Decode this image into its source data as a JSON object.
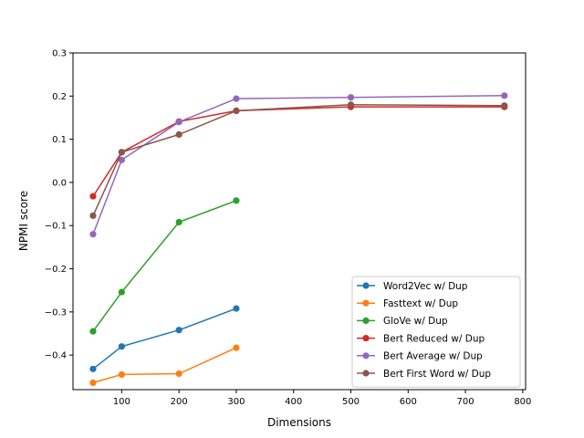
{
  "chart_data": {
    "type": "line",
    "title": "",
    "xlabel": "Dimensions",
    "ylabel": "NPMI score",
    "xlim": [
      15,
      805
    ],
    "ylim": [
      -0.48,
      0.3
    ],
    "xticks": [
      100,
      200,
      300,
      400,
      500,
      600,
      700,
      800
    ],
    "xtick_labels": [
      "100",
      "200",
      "300",
      "400",
      "500",
      "600",
      "700",
      "800"
    ],
    "yticks": [
      0.3,
      0.2,
      0.1,
      0.0,
      -0.1,
      -0.2,
      -0.3,
      -0.4
    ],
    "ytick_labels": [
      "0.3",
      "0.2",
      "0.1",
      "0.0",
      "−0.1",
      "−0.2",
      "−0.3",
      "−0.4"
    ],
    "grid": false,
    "legend_position": "lower-right",
    "series": [
      {
        "name": "Word2Vec w/ Dup",
        "color": "#1f77b4",
        "x": [
          50,
          100,
          200,
          300
        ],
        "y": [
          -0.432,
          -0.38,
          -0.342,
          -0.292
        ]
      },
      {
        "name": "Fasttext w/ Dup",
        "color": "#ff7f0e",
        "x": [
          50,
          100,
          200,
          300
        ],
        "y": [
          -0.464,
          -0.445,
          -0.443,
          -0.383
        ]
      },
      {
        "name": "GloVe w/ Dup",
        "color": "#2ca02c",
        "x": [
          50,
          100,
          200,
          300
        ],
        "y": [
          -0.345,
          -0.254,
          -0.092,
          -0.042
        ]
      },
      {
        "name": "Bert Reduced w/ Dup",
        "color": "#d62728",
        "x": [
          50,
          100,
          200,
          300,
          500,
          768
        ],
        "y": [
          -0.032,
          0.07,
          0.141,
          0.166,
          0.175,
          0.175
        ]
      },
      {
        "name": "Bert Average w/ Dup",
        "color": "#9467bd",
        "x": [
          50,
          100,
          200,
          300,
          500,
          768
        ],
        "y": [
          -0.12,
          0.052,
          0.14,
          0.194,
          0.197,
          0.201
        ]
      },
      {
        "name": "Bert First Word w/ Dup",
        "color": "#8c564b",
        "x": [
          50,
          100,
          200,
          300,
          500,
          768
        ],
        "y": [
          -0.077,
          0.07,
          0.111,
          0.166,
          0.18,
          0.178
        ]
      }
    ]
  }
}
